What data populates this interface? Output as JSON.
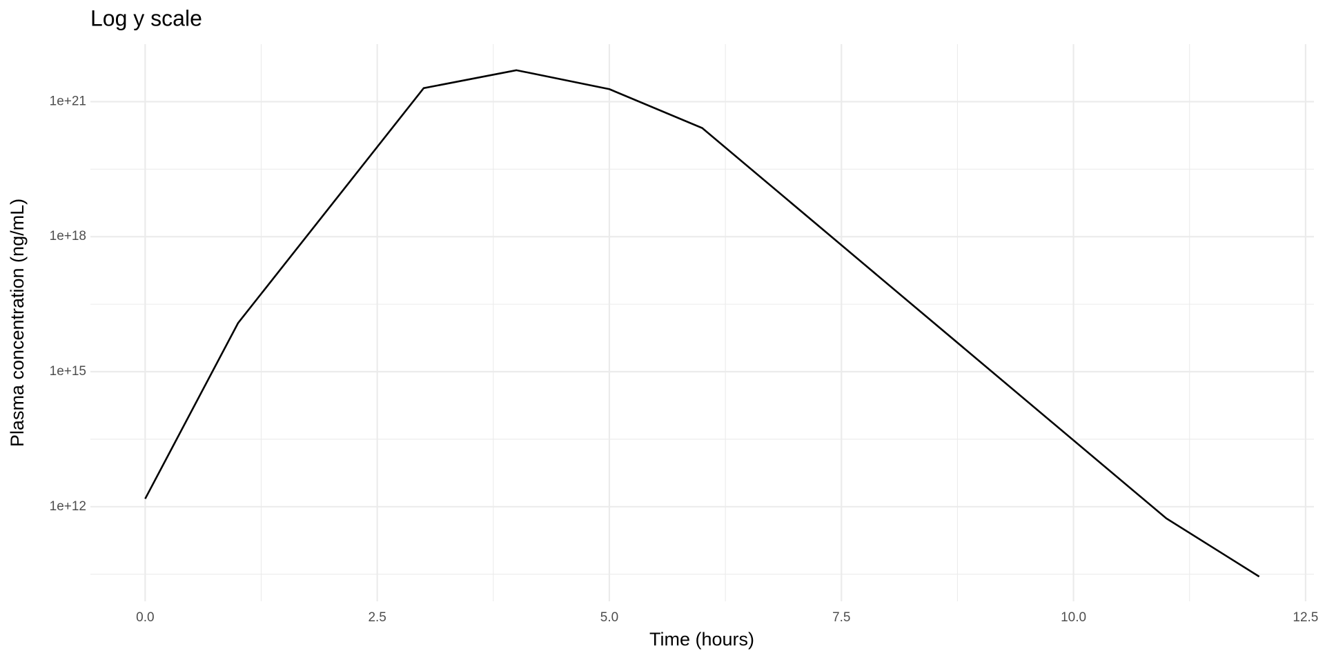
{
  "chart_data": {
    "type": "line",
    "title": "Log y scale",
    "x_label": "Time (hours)",
    "y_label": "Plasma concentration (ng/mL)",
    "x": [
      0,
      1,
      3,
      4,
      5,
      6,
      11,
      12
    ],
    "values": [
      1500000000000.0,
      1.2e+16,
      2e+21,
      5e+21,
      1.9e+21,
      2.6e+20,
      550000000000.0,
      28000000000.0
    ],
    "color": "#000000",
    "log_y": true,
    "grid": true,
    "xlim": [
      -0.59,
      12.59
    ],
    "xticks": [
      {
        "value": 0,
        "label": "0.0"
      },
      {
        "value": 2.5,
        "label": "2.5"
      },
      {
        "value": 5,
        "label": "5.0"
      },
      {
        "value": 7.5,
        "label": "7.5"
      },
      {
        "value": 10,
        "label": "10.0"
      },
      {
        "value": 12.5,
        "label": "12.5"
      }
    ],
    "ylim": [
      7900000000.0,
      1.9e+22
    ],
    "yticks": [
      {
        "value": 1000000000000.0,
        "label": "1e+12"
      },
      {
        "value": 1000000000000000.0,
        "label": "1e+15"
      },
      {
        "value": 1e+18,
        "label": "1e+18"
      },
      {
        "value": 1e+21,
        "label": "1e+21"
      }
    ]
  }
}
